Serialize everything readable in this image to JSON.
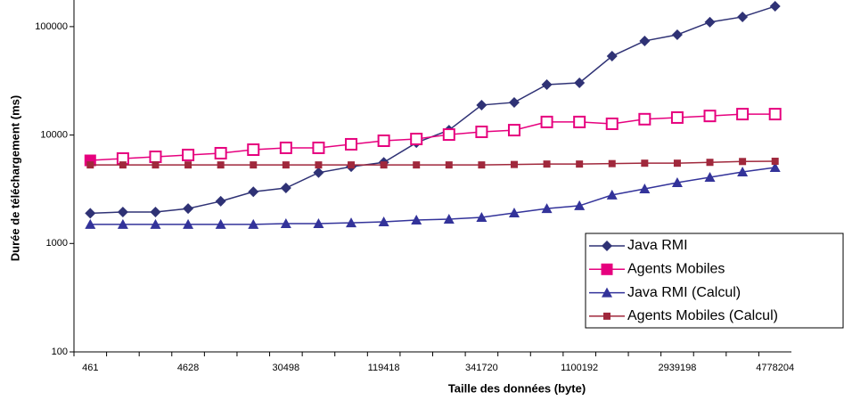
{
  "chart_data": {
    "type": "line",
    "x_label": "Taille des données (byte)",
    "y_label": "Durée de téléchargement (ms)",
    "categories": [
      "461",
      null,
      null,
      "4628",
      null,
      null,
      "30498",
      null,
      null,
      "119418",
      null,
      null,
      "341720",
      null,
      null,
      "1100192",
      null,
      null,
      "2939198",
      null,
      null,
      "4778204"
    ],
    "log_y": true,
    "ylim": [
      100,
      176000
    ],
    "yticks": [
      100,
      1000,
      10000,
      100000
    ],
    "legend": "right",
    "series": [
      {
        "name": "Java RMI",
        "color": "#2f3275",
        "marker": "diamond",
        "values": [
          1900,
          1950,
          1950,
          2100,
          2450,
          3000,
          3250,
          4500,
          5100,
          5600,
          8500,
          11100,
          18900,
          20000,
          29200,
          30300,
          53400,
          73800,
          84200,
          110000,
          123000,
          154000
        ]
      },
      {
        "name": "Agents Mobiles",
        "color": "#e6007e",
        "marker": "square-open",
        "values": [
          5840,
          6070,
          6300,
          6550,
          6800,
          7330,
          7620,
          7620,
          8220,
          8860,
          9200,
          10100,
          10700,
          11100,
          13200,
          13200,
          12700,
          14000,
          14500,
          15000,
          15600,
          15600
        ]
      },
      {
        "name": "Java RMI (Calcul)",
        "color": "#33339a",
        "marker": "triangle",
        "values": [
          1500,
          1500,
          1500,
          1500,
          1500,
          1500,
          1525,
          1525,
          1550,
          1585,
          1645,
          1675,
          1740,
          1915,
          2100,
          2230,
          2800,
          3190,
          3640,
          4080,
          4570,
          5020
        ]
      },
      {
        "name": "Agents Mobiles (Calcul)",
        "color": "#a0283c",
        "marker": "square",
        "values": [
          5300,
          5300,
          5300,
          5300,
          5300,
          5300,
          5300,
          5300,
          5300,
          5300,
          5300,
          5300,
          5300,
          5350,
          5400,
          5400,
          5450,
          5500,
          5500,
          5600,
          5700,
          5730
        ]
      }
    ]
  }
}
